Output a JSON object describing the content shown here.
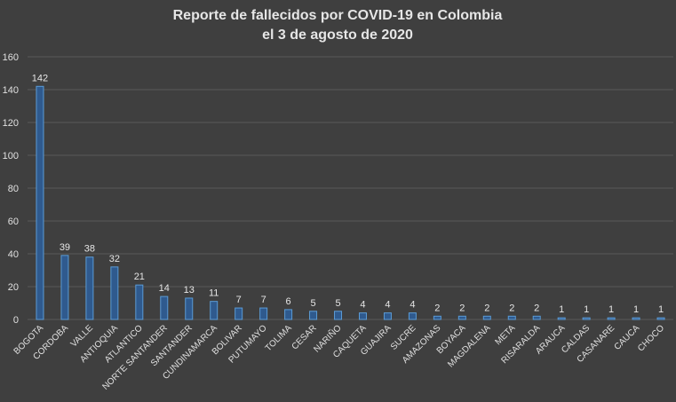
{
  "chart_data": {
    "type": "bar",
    "title": [
      "Reporte de fallecidos por COVID-19 en Colombia",
      "el 3 de agosto de 2020"
    ],
    "categories": [
      "BOGOTA",
      "CORDOBA",
      "VALLE",
      "ANTIOQUIA",
      "ATLANTICO",
      "NORTE SANTANDER",
      "SANTANDER",
      "CUNDINAMARCA",
      "BOLIVAR",
      "PUTUMAYO",
      "TOLIMA",
      "CESAR",
      "NARIÑO",
      "CAQUETA",
      "GUAJIRA",
      "SUCRE",
      "AMAZONAS",
      "BOYACA",
      "MAGDALENA",
      "META",
      "RISARALDA",
      "ARAUCA",
      "CALDAS",
      "CASANARE",
      "CAUCA",
      "CHOCO"
    ],
    "values": [
      142,
      39,
      38,
      32,
      21,
      14,
      13,
      11,
      7,
      7,
      6,
      5,
      5,
      4,
      4,
      4,
      2,
      2,
      2,
      2,
      2,
      1,
      1,
      1,
      1,
      1
    ],
    "ylim": [
      0,
      160
    ],
    "yticks": [
      0,
      20,
      40,
      60,
      80,
      100,
      120,
      140,
      160
    ],
    "grid": true,
    "data_labels": true,
    "colors": {
      "background": "#3f3f3f",
      "gridline": "#5a5a5a",
      "bar_fill": "#2f5a8e",
      "bar_stroke": "#5b9bd5",
      "text": "#e0e0e0"
    }
  }
}
